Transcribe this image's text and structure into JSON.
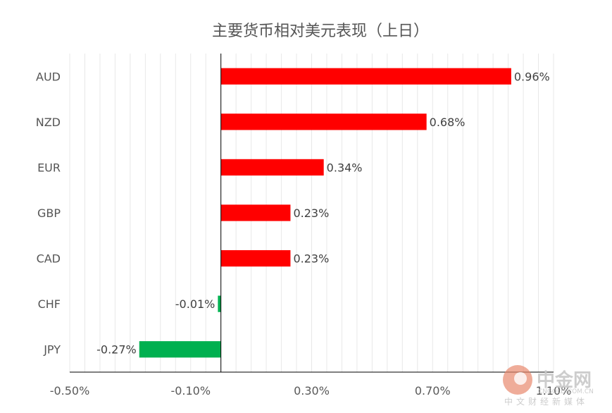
{
  "chart_data": {
    "type": "bar",
    "orientation": "horizontal",
    "title": "主要货币相对美元表现（上日）",
    "categories": [
      "AUD",
      "NZD",
      "EUR",
      "GBP",
      "CAD",
      "CHF",
      "JPY"
    ],
    "values": [
      0.96,
      0.68,
      0.34,
      0.23,
      0.23,
      -0.01,
      -0.27
    ],
    "data_labels": [
      "0.96%",
      "0.68%",
      "0.34%",
      "0.23%",
      "0.23%",
      "-0.01%",
      "-0.27%"
    ],
    "xticks": [
      -0.5,
      -0.1,
      0.3,
      0.7,
      1.1
    ],
    "xtick_labels": [
      "-0.50%",
      "-0.10%",
      "0.30%",
      "0.70%",
      "1.10%"
    ],
    "xlim": [
      -0.5,
      1.1
    ],
    "grid": true,
    "colors": {
      "positive": "#ff0000",
      "negative": "#00b050",
      "grid": "#e8e8e8",
      "axis": "#000000",
      "title": "#555555"
    }
  },
  "watermark": {
    "brand": "中金网",
    "domain": "CNGOLD.COM.CN",
    "tagline": "中文财经新媒体"
  }
}
